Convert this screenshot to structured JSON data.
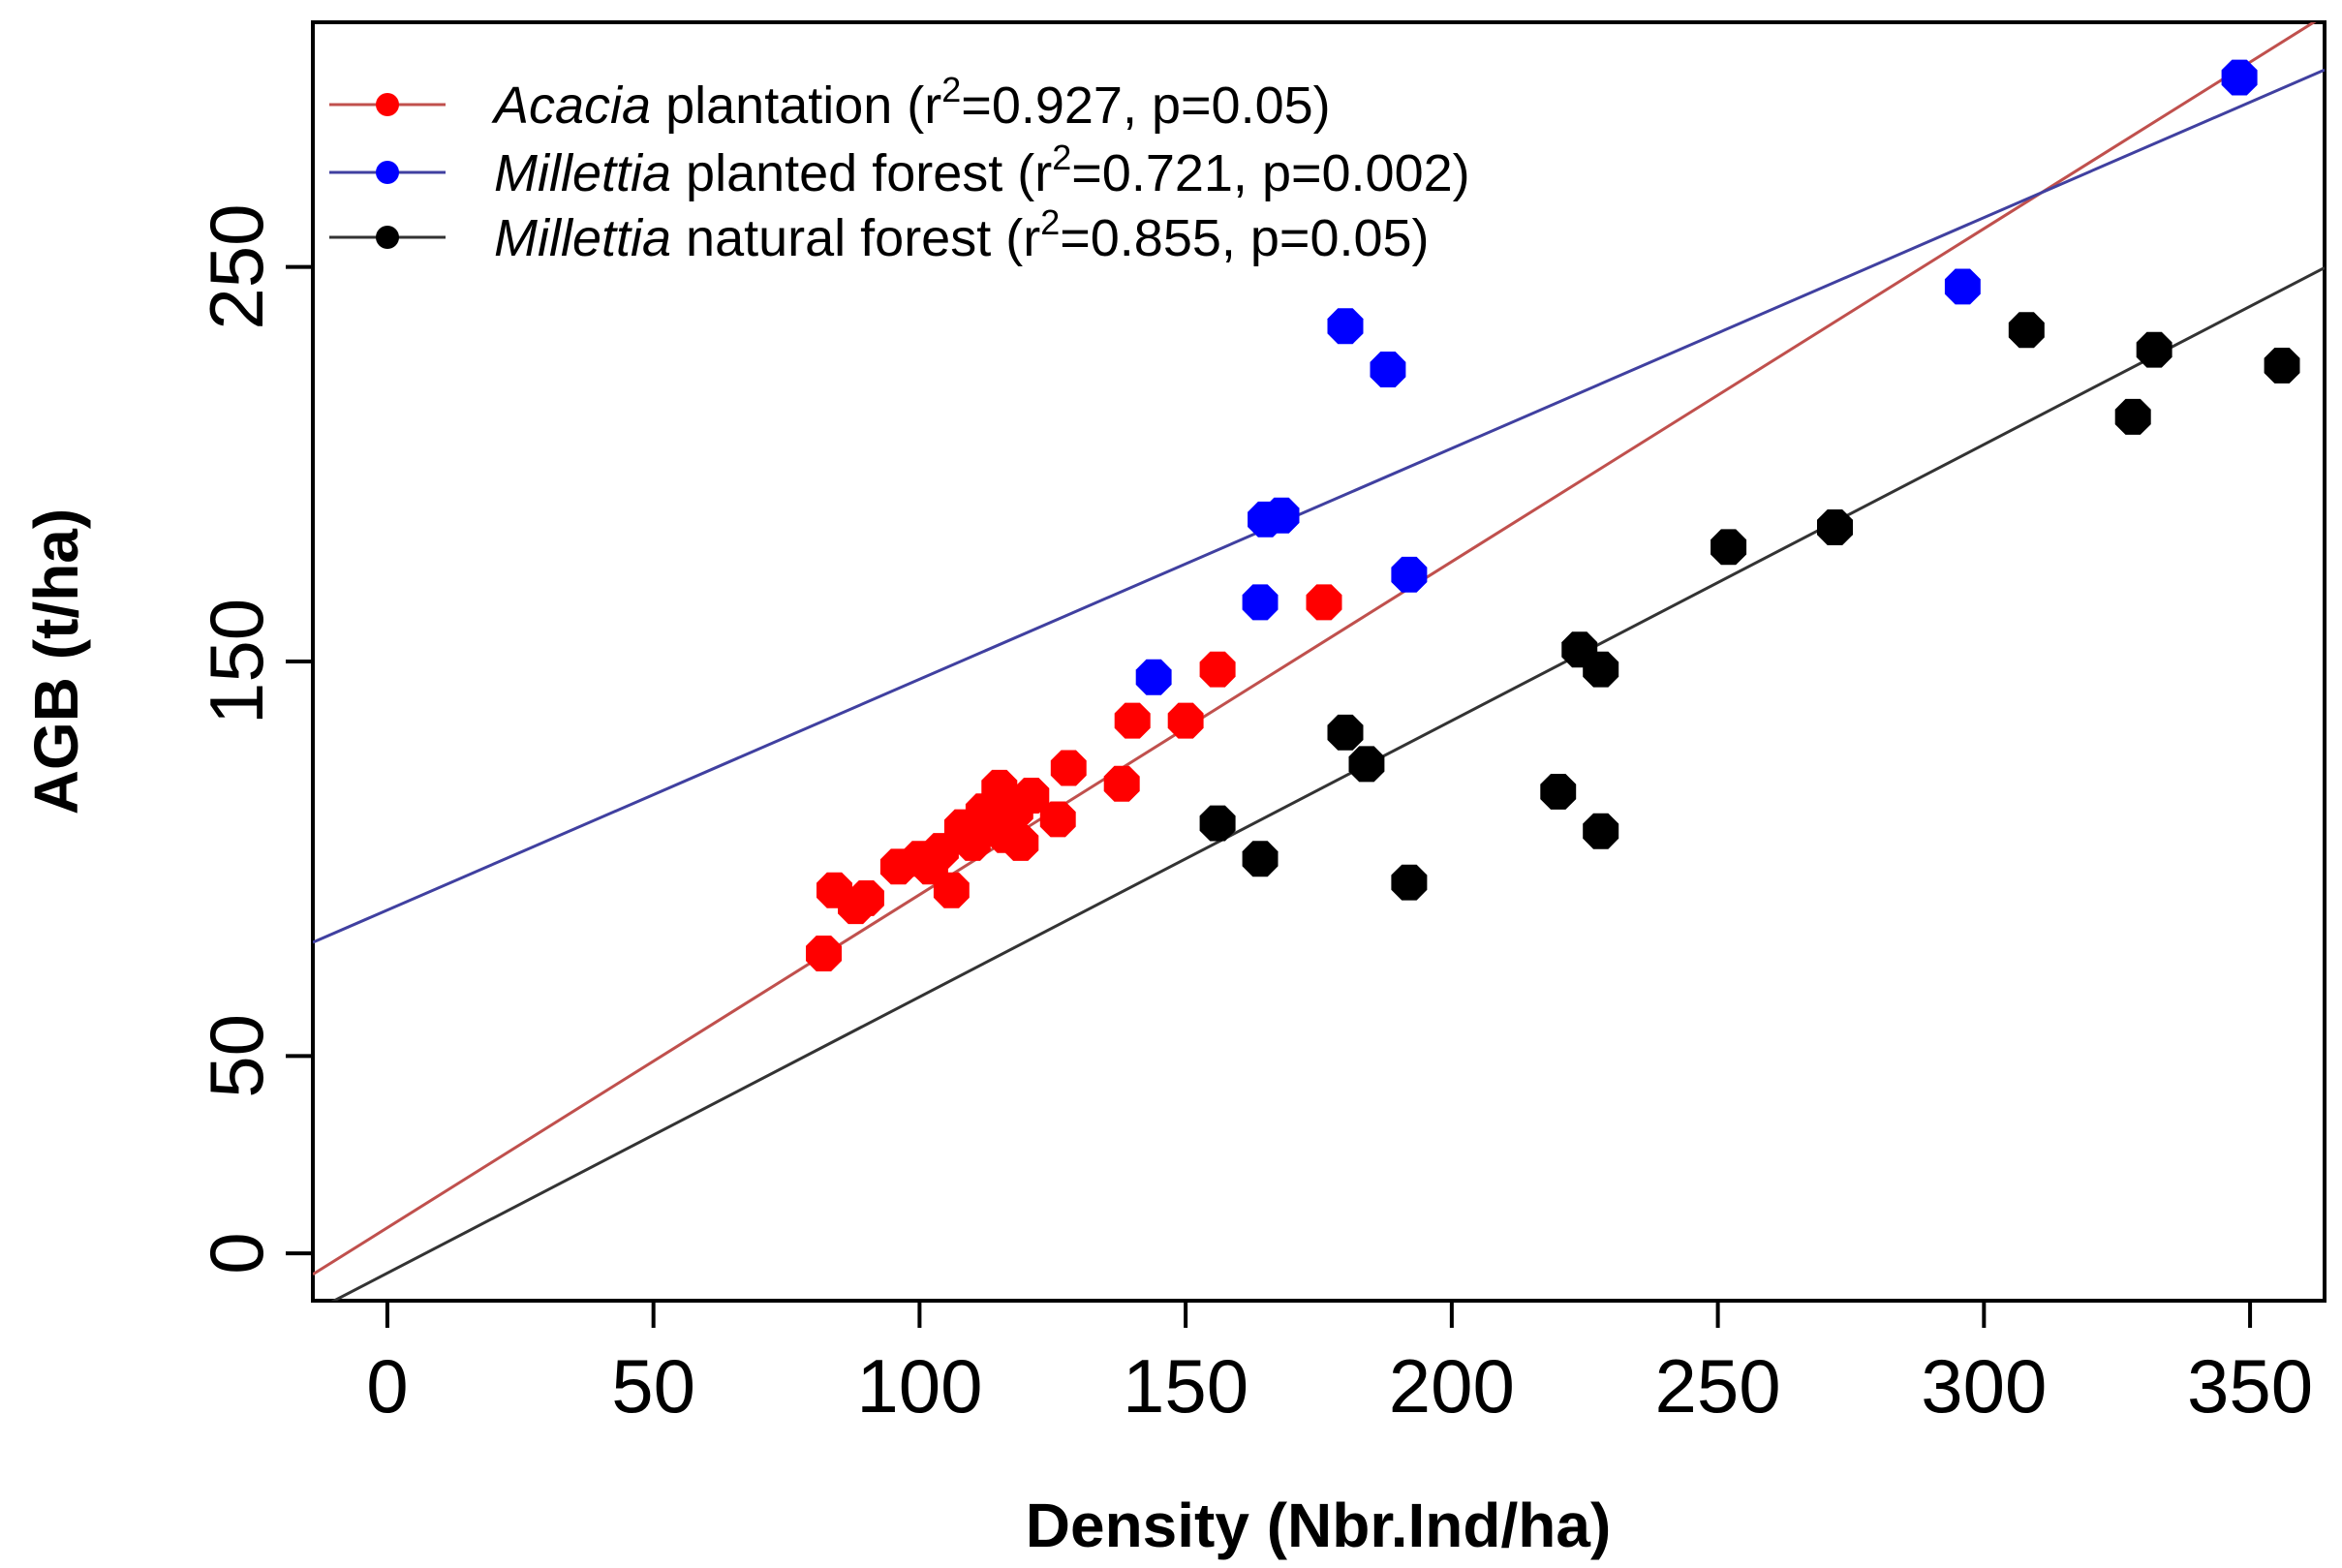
{
  "chart_data": {
    "type": "scatter",
    "title": "",
    "xlabel": "Density (Nbr.Ind/ha)",
    "ylabel": "AGB (t/ha)",
    "xlim": [
      -14,
      364
    ],
    "ylim": [
      -12,
      312
    ],
    "xticks": [
      0,
      50,
      100,
      150,
      200,
      250,
      300,
      350
    ],
    "yticks": [
      0,
      50,
      150,
      250
    ],
    "xtick_labels": [
      "0",
      "50",
      "100",
      "150",
      "200",
      "250",
      "300",
      "350"
    ],
    "ytick_labels": [
      "0",
      "50",
      "150",
      "250"
    ],
    "grid": false,
    "legend_position": "top-left",
    "series": [
      {
        "name": "Acacia plantation",
        "legend_italic": "Acacia",
        "legend_rest": " plantation",
        "legend_stats_prefix": "(r",
        "legend_stats_sup": "2",
        "legend_stats_suffix": "=0.927,  p=0.05)",
        "color": "#ff0000",
        "line_color": "#c0504d",
        "fit": {
          "slope": 0.844,
          "intercept": 6.5
        },
        "points": [
          [
            82,
            76
          ],
          [
            84,
            92
          ],
          [
            88,
            88
          ],
          [
            90,
            90
          ],
          [
            96,
            98
          ],
          [
            100,
            100
          ],
          [
            102,
            98
          ],
          [
            104,
            102
          ],
          [
            106,
            92
          ],
          [
            108,
            108
          ],
          [
            110,
            104
          ],
          [
            112,
            112
          ],
          [
            114,
            110
          ],
          [
            115,
            118
          ],
          [
            116,
            106
          ],
          [
            118,
            112
          ],
          [
            119,
            104
          ],
          [
            121,
            116
          ],
          [
            126,
            110
          ],
          [
            128,
            123
          ],
          [
            138,
            119
          ],
          [
            140,
            135
          ],
          [
            150,
            135
          ],
          [
            156,
            148
          ],
          [
            176,
            165
          ]
        ]
      },
      {
        "name": "Millettia planted forest",
        "legend_italic": "Millettia",
        "legend_rest": " planted forest",
        "legend_stats_prefix": "(r",
        "legend_stats_sup": "2",
        "legend_stats_suffix": "=0.721,  p=0.002)",
        "color": "#0000ff",
        "line_color": "#4040a0",
        "fit": {
          "slope": 0.585,
          "intercept": 87
        },
        "points": [
          [
            144,
            146
          ],
          [
            164,
            165
          ],
          [
            165,
            186
          ],
          [
            168,
            187
          ],
          [
            180,
            235
          ],
          [
            188,
            224
          ],
          [
            192,
            172
          ],
          [
            296,
            245
          ],
          [
            348,
            298
          ]
        ]
      },
      {
        "name": "Millettia natural forest",
        "legend_italic": "Millettia",
        "legend_rest": " natural forest",
        "legend_stats_prefix": "(r",
        "legend_stats_sup": "2",
        "legend_stats_suffix": "=0.855,  p=0.05)",
        "color": "#000000",
        "line_color": "#333333",
        "fit": {
          "slope": 0.7,
          "intercept": -5
        },
        "points": [
          [
            156,
            109
          ],
          [
            164,
            100
          ],
          [
            180,
            132
          ],
          [
            184,
            124
          ],
          [
            192,
            94
          ],
          [
            220,
            117
          ],
          [
            224,
            153
          ],
          [
            228,
            148
          ],
          [
            228,
            107
          ],
          [
            252,
            179
          ],
          [
            272,
            184
          ],
          [
            308,
            234
          ],
          [
            328,
            212
          ],
          [
            332,
            229
          ],
          [
            356,
            225
          ]
        ]
      }
    ]
  }
}
